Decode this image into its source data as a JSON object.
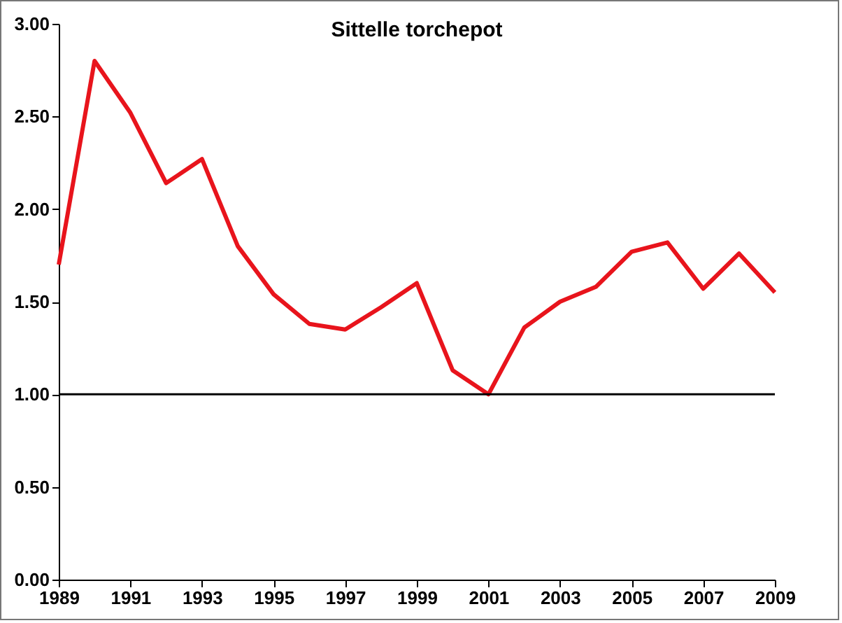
{
  "chart_data": {
    "type": "line",
    "title": "Sittelle torchepot",
    "x": [
      1989,
      1990,
      1991,
      1992,
      1993,
      1994,
      1995,
      1996,
      1997,
      1998,
      1999,
      2000,
      2001,
      2002,
      2003,
      2004,
      2005,
      2006,
      2007,
      2008,
      2009
    ],
    "series": [
      {
        "color": "#e8141c",
        "values": [
          1.7,
          2.8,
          2.52,
          2.14,
          2.27,
          1.8,
          1.54,
          1.38,
          1.35,
          1.47,
          1.6,
          1.13,
          1.0,
          1.36,
          1.5,
          1.58,
          1.77,
          1.82,
          1.57,
          1.76,
          1.55
        ]
      }
    ],
    "xlim": [
      1989,
      2009
    ],
    "xticks": [
      1989,
      1991,
      1993,
      1995,
      1997,
      1999,
      2001,
      2003,
      2005,
      2007,
      2009
    ],
    "ylim": [
      0,
      3
    ],
    "yticks": [
      {
        "value": 0,
        "label": "0.00"
      },
      {
        "value": 0.5,
        "label": "0.50"
      },
      {
        "value": 1,
        "label": "1.00"
      },
      {
        "value": 1.5,
        "label": "1.50"
      },
      {
        "value": 2,
        "label": "2.00"
      },
      {
        "value": 2.5,
        "label": "2.50"
      },
      {
        "value": 3,
        "label": "3.00"
      }
    ],
    "ref_lines": [
      {
        "axis": "y",
        "value": 1,
        "color": "#000000"
      }
    ],
    "grid": false,
    "marker": "none",
    "line_style": "solid"
  }
}
